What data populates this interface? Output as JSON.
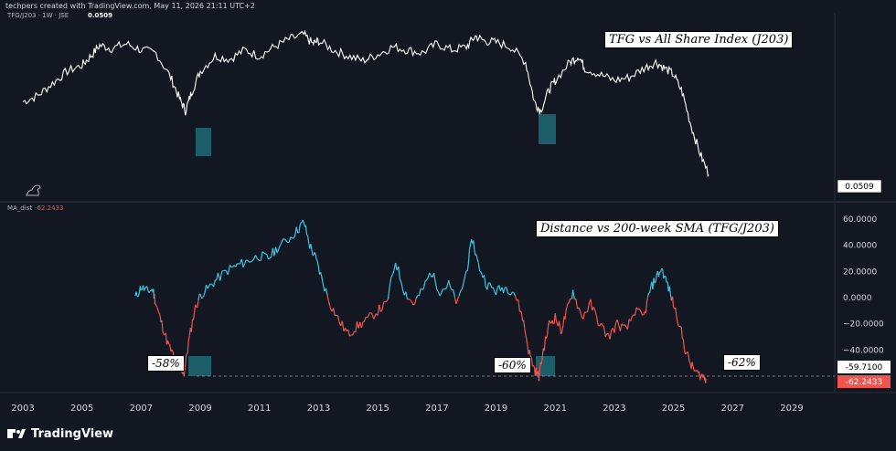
{
  "header": {
    "watermark": "techpers created with TradingView.com, May 11, 2026 21:11 UTC+2"
  },
  "upper_pane": {
    "symbol_label": "TFG/J203 · 1W · JSE",
    "symbol_value": "0.0509",
    "annotation": "TFG vs All Share Index (J203)",
    "last_price_label": "0.0509"
  },
  "lower_pane": {
    "indicator_label": "MA_dist",
    "indicator_value": "-62.2433",
    "annotation": "Distance vs 200-week SMA (TFG/J203)",
    "callouts": [
      "-58%",
      "-60%",
      "-62%"
    ],
    "price_labels": {
      "level_line": "-59.7100",
      "last": "-62.2433"
    }
  },
  "footer": {
    "brand": "TradingView"
  },
  "colors": {
    "background": "#131722",
    "price_line": "#ffffff",
    "positive": "#3cc5e3",
    "negative": "#f0544f",
    "highlight": "#1e6b73",
    "last_label": "#f0544f"
  },
  "chart_data": [
    {
      "type": "line",
      "title": "TFG vs All Share Index (J203)",
      "xlabel": "",
      "ylabel": "",
      "x_ticks": [
        "2003",
        "2005",
        "2007",
        "2009",
        "2011",
        "2013",
        "2015",
        "2017",
        "2019",
        "2021",
        "2023",
        "2025",
        "2027",
        "2029"
      ],
      "last_value": 0.0509,
      "series": [
        {
          "values": [
            [
              2003.0,
              0.56
            ],
            [
              2003.5,
              0.6
            ],
            [
              2004.0,
              0.68
            ],
            [
              2004.5,
              0.76
            ],
            [
              2005.0,
              0.8
            ],
            [
              2005.3,
              0.86
            ],
            [
              2005.6,
              0.93
            ],
            [
              2006.0,
              0.91
            ],
            [
              2006.5,
              0.94
            ],
            [
              2007.0,
              0.9
            ],
            [
              2007.5,
              0.88
            ],
            [
              2008.0,
              0.72
            ],
            [
              2008.3,
              0.58
            ],
            [
              2008.5,
              0.5
            ],
            [
              2008.7,
              0.62
            ],
            [
              2009.0,
              0.76
            ],
            [
              2009.5,
              0.86
            ],
            [
              2010.0,
              0.84
            ],
            [
              2010.5,
              0.9
            ],
            [
              2011.0,
              0.86
            ],
            [
              2011.5,
              0.92
            ],
            [
              2012.0,
              0.97
            ],
            [
              2012.5,
              1.0
            ],
            [
              2012.8,
              0.94
            ],
            [
              2013.0,
              0.96
            ],
            [
              2013.5,
              0.9
            ],
            [
              2014.0,
              0.86
            ],
            [
              2014.5,
              0.83
            ],
            [
              2015.0,
              0.87
            ],
            [
              2015.5,
              0.92
            ],
            [
              2016.0,
              0.9
            ],
            [
              2016.5,
              0.88
            ],
            [
              2017.0,
              0.94
            ],
            [
              2017.5,
              0.9
            ],
            [
              2018.0,
              0.92
            ],
            [
              2018.3,
              0.99
            ],
            [
              2018.6,
              0.96
            ],
            [
              2019.0,
              0.95
            ],
            [
              2019.5,
              0.92
            ],
            [
              2020.0,
              0.82
            ],
            [
              2020.3,
              0.56
            ],
            [
              2020.5,
              0.5
            ],
            [
              2020.8,
              0.64
            ],
            [
              2021.0,
              0.7
            ],
            [
              2021.5,
              0.82
            ],
            [
              2021.8,
              0.86
            ],
            [
              2022.0,
              0.78
            ],
            [
              2022.5,
              0.74
            ],
            [
              2023.0,
              0.7
            ],
            [
              2023.5,
              0.72
            ],
            [
              2024.0,
              0.78
            ],
            [
              2024.4,
              0.82
            ],
            [
              2024.7,
              0.78
            ],
            [
              2025.0,
              0.74
            ],
            [
              2025.3,
              0.62
            ],
            [
              2025.6,
              0.4
            ],
            [
              2025.9,
              0.22
            ],
            [
              2026.2,
              0.08
            ]
          ]
        }
      ]
    },
    {
      "type": "line",
      "title": "Distance vs 200-week SMA (TFG/J203)",
      "xlabel": "",
      "ylabel": "",
      "x_ticks": [
        "2003",
        "2005",
        "2007",
        "2009",
        "2011",
        "2013",
        "2015",
        "2017",
        "2019",
        "2021",
        "2023",
        "2025",
        "2027",
        "2029"
      ],
      "y_ticks": [
        "60.0000",
        "40.0000",
        "20.0000",
        "0.0000",
        "−20.0000",
        "−40.0000"
      ],
      "ylim": [
        -70,
        65
      ],
      "reference_level": -59.71,
      "last_value": -62.2433,
      "series": [
        {
          "name": "MA_dist",
          "values": [
            [
              2006.8,
              0
            ],
            [
              2007.0,
              8
            ],
            [
              2007.2,
              5
            ],
            [
              2007.4,
              6
            ],
            [
              2007.5,
              -5
            ],
            [
              2007.7,
              -20
            ],
            [
              2007.9,
              -35
            ],
            [
              2008.1,
              -45
            ],
            [
              2008.3,
              -52
            ],
            [
              2008.45,
              -58
            ],
            [
              2008.6,
              -35
            ],
            [
              2008.8,
              -10
            ],
            [
              2009.0,
              2
            ],
            [
              2009.3,
              8
            ],
            [
              2009.6,
              15
            ],
            [
              2010.0,
              22
            ],
            [
              2010.3,
              25
            ],
            [
              2010.6,
              28
            ],
            [
              2011.0,
              32
            ],
            [
              2011.3,
              30
            ],
            [
              2011.6,
              38
            ],
            [
              2012.0,
              45
            ],
            [
              2012.3,
              52
            ],
            [
              2012.5,
              58
            ],
            [
              2012.7,
              40
            ],
            [
              2012.9,
              30
            ],
            [
              2013.1,
              15
            ],
            [
              2013.4,
              -5
            ],
            [
              2013.7,
              -18
            ],
            [
              2014.0,
              -28
            ],
            [
              2014.3,
              -22
            ],
            [
              2014.6,
              -18
            ],
            [
              2015.0,
              -10
            ],
            [
              2015.3,
              -5
            ],
            [
              2015.6,
              28
            ],
            [
              2015.9,
              5
            ],
            [
              2016.2,
              -5
            ],
            [
              2016.5,
              5
            ],
            [
              2016.8,
              20
            ],
            [
              2017.1,
              5
            ],
            [
              2017.4,
              10
            ],
            [
              2017.7,
              -5
            ],
            [
              2018.0,
              20
            ],
            [
              2018.2,
              45
            ],
            [
              2018.4,
              25
            ],
            [
              2018.7,
              10
            ],
            [
              2019.0,
              5
            ],
            [
              2019.3,
              8
            ],
            [
              2019.6,
              5
            ],
            [
              2019.9,
              -15
            ],
            [
              2020.1,
              -40
            ],
            [
              2020.3,
              -55
            ],
            [
              2020.45,
              -60
            ],
            [
              2020.6,
              -40
            ],
            [
              2020.8,
              -20
            ],
            [
              2021.0,
              -15
            ],
            [
              2021.2,
              -25
            ],
            [
              2021.4,
              -10
            ],
            [
              2021.6,
              5
            ],
            [
              2021.9,
              -15
            ],
            [
              2022.2,
              -5
            ],
            [
              2022.5,
              -20
            ],
            [
              2022.8,
              -30
            ],
            [
              2023.1,
              -20
            ],
            [
              2023.4,
              -25
            ],
            [
              2023.7,
              -10
            ],
            [
              2024.0,
              -15
            ],
            [
              2024.2,
              5
            ],
            [
              2024.4,
              15
            ],
            [
              2024.6,
              22
            ],
            [
              2024.8,
              10
            ],
            [
              2025.0,
              -5
            ],
            [
              2025.2,
              -20
            ],
            [
              2025.4,
              -40
            ],
            [
              2025.6,
              -52
            ],
            [
              2025.8,
              -58
            ],
            [
              2026.0,
              -60
            ],
            [
              2026.1,
              -62
            ]
          ]
        }
      ]
    }
  ]
}
